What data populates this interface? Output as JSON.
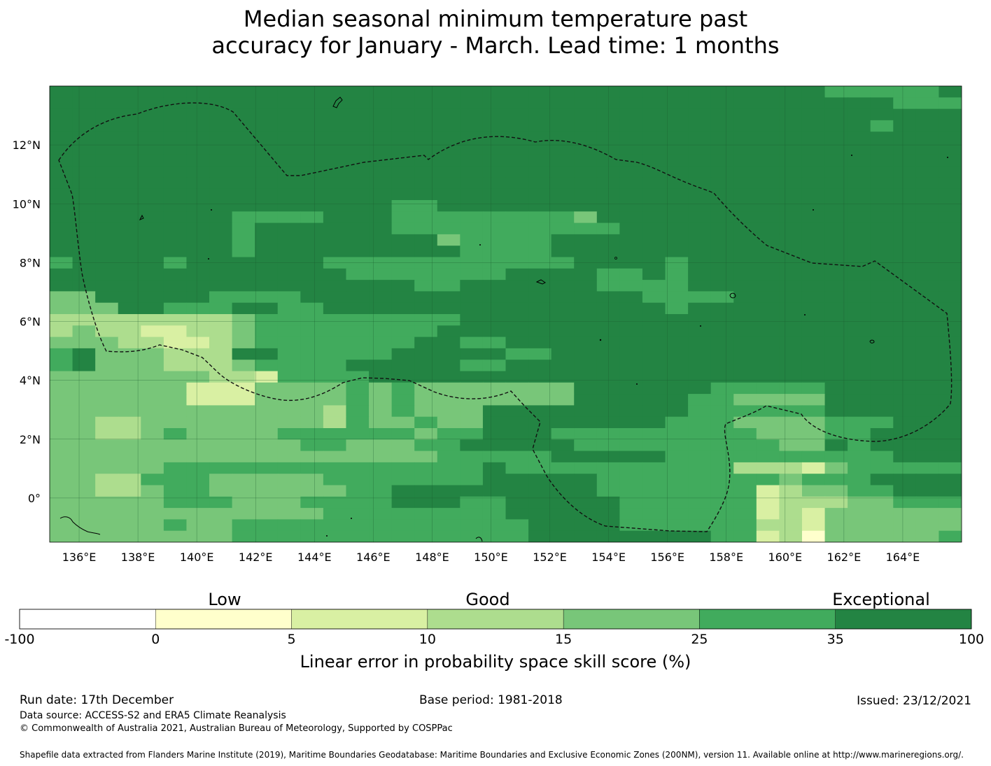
{
  "title": {
    "line1": "Median seasonal minimum temperature past",
    "line2": "accuracy for January - March. Lead time: 1 months"
  },
  "colors": {
    "c0": "#ffffff",
    "c1": "#ffffcc",
    "c2": "#d9f0a3",
    "c3": "#addd8e",
    "c4": "#78c679",
    "c5": "#41ab5d",
    "c6": "#238443"
  },
  "map": {
    "lon_range": [
      135.0,
      166.0
    ],
    "lat_range": [
      -1.5,
      14.0
    ],
    "grid_step_deg": 0.833,
    "x_ticks": [
      {
        "value": 136,
        "label": "136°E"
      },
      {
        "value": 138,
        "label": "138°E"
      },
      {
        "value": 140,
        "label": "140°E"
      },
      {
        "value": 142,
        "label": "142°E"
      },
      {
        "value": 144,
        "label": "144°E"
      },
      {
        "value": 146,
        "label": "146°E"
      },
      {
        "value": 148,
        "label": "148°E"
      },
      {
        "value": 150,
        "label": "150°E"
      },
      {
        "value": 152,
        "label": "152°E"
      },
      {
        "value": 154,
        "label": "154°E"
      },
      {
        "value": 156,
        "label": "156°E"
      },
      {
        "value": 158,
        "label": "158°E"
      },
      {
        "value": 160,
        "label": "160°E"
      },
      {
        "value": 162,
        "label": "162°E"
      },
      {
        "value": 164,
        "label": "164°E"
      }
    ],
    "y_ticks": [
      {
        "value": 12,
        "label": "12°N"
      },
      {
        "value": 10,
        "label": "10°N"
      },
      {
        "value": 8,
        "label": "8°N"
      },
      {
        "value": 6,
        "label": "6°N"
      },
      {
        "value": 4,
        "label": "4°N"
      },
      {
        "value": 2,
        "label": "2°N"
      },
      {
        "value": 0,
        "label": "0°"
      }
    ],
    "skill_grid_rows_north_to_south": [
      "6666666666666666666666666666666666555556",
      "6666666666666666666666666666666666666555",
      "6666666666666666666666666666666666666666",
      "6666666666666666666666666666666666665666",
      "6666666666666666666666666666666666666666",
      "6666666666666666666666666666666666666666",
      "6666666666666666666666666666666666666666",
      "6666666666666666666666666666666666666666",
      "6666666666666666666666666666666666666666",
      "6666666666666666666666666666666666666666",
      "6666666666666665566666666666666666666666",
      "6666666655556665555555546666666666666666",
      "6666666656666665555555555666666666666666",
      "6666666656666666645555666666666666666666",
      "6666666656666666665555666666666666666666",
      "5666656666665555555555566665666666666666",
      "6666666666666555555566665565666666666666",
      "6666666666666666556666665555666666666666",
      "4466666555566666666666666655556666666666",
      "4446655566556666666666666665666666666666",
      "3333333345555555556666666666666666666666",
      "3433223345555555566666666666666666666666",
      "4443322345555555665566666666666666666666",
      "5644433366555556666655666666666666666666",
      "5644433345555666665566666666666666666666",
      "4444444332555566666666666666666666666666",
      "4444442224444545444444466666655555666666",
      "4444442224444545444444466666554444666666",
      "4444444444443545444666666666555555666666",
      "4433444444443544544666666665554444555666",
      "4433454444555555455666555555555444556666",
      "4444444444455444556666655555555544656666",
      "4444444444444444455555666665555555555666",
      "4444455555555555555655555555553332455555",
      "4433555444445555555666665555555545556666",
      "4433455444444556666666665555555234455666",
      "4444455544455556665566666555555233344555",
      "4444444444445555555566666555555232444444",
      "4444454455555555555556666555555332444444",
      "4444444455555555555556666666655231444445"
    ]
  },
  "legend": {
    "category_labels": {
      "low": "Low",
      "good": "Good",
      "exceptional": "Exceptional"
    },
    "bins": [
      {
        "from": -100,
        "to": 0,
        "color": "#ffffff"
      },
      {
        "from": 0,
        "to": 5,
        "color": "#ffffcc"
      },
      {
        "from": 5,
        "to": 10,
        "color": "#d9f0a3"
      },
      {
        "from": 10,
        "to": 15,
        "color": "#addd8e"
      },
      {
        "from": 15,
        "to": 25,
        "color": "#78c679"
      },
      {
        "from": 25,
        "to": 35,
        "color": "#41ab5d"
      },
      {
        "from": 35,
        "to": 100,
        "color": "#238443"
      }
    ],
    "tick_labels": [
      "-100",
      "0",
      "5",
      "10",
      "15",
      "25",
      "35",
      "100"
    ],
    "axis_title": "Linear error in probability space skill score (%)"
  },
  "footer": {
    "run_date": "Run date: 17th December",
    "base_period": "Base period: 1981-2018",
    "issued": "Issued: 23/12/2021",
    "data_source": "Data source: ACCESS-S2 and ERA5 Climate Reanalysis",
    "copyright": "© Commonwealth of Australia 2021, Australian Bureau of Meteorology, Supported by COSPPac",
    "shapefile": "Shapefile data extracted from Flanders Marine Institute (2019), Maritime Boundaries Geodatabase: Maritime Boundaries and Exclusive Economic Zones (200NM), version 11. Available online at http://www.marineregions.org/."
  }
}
